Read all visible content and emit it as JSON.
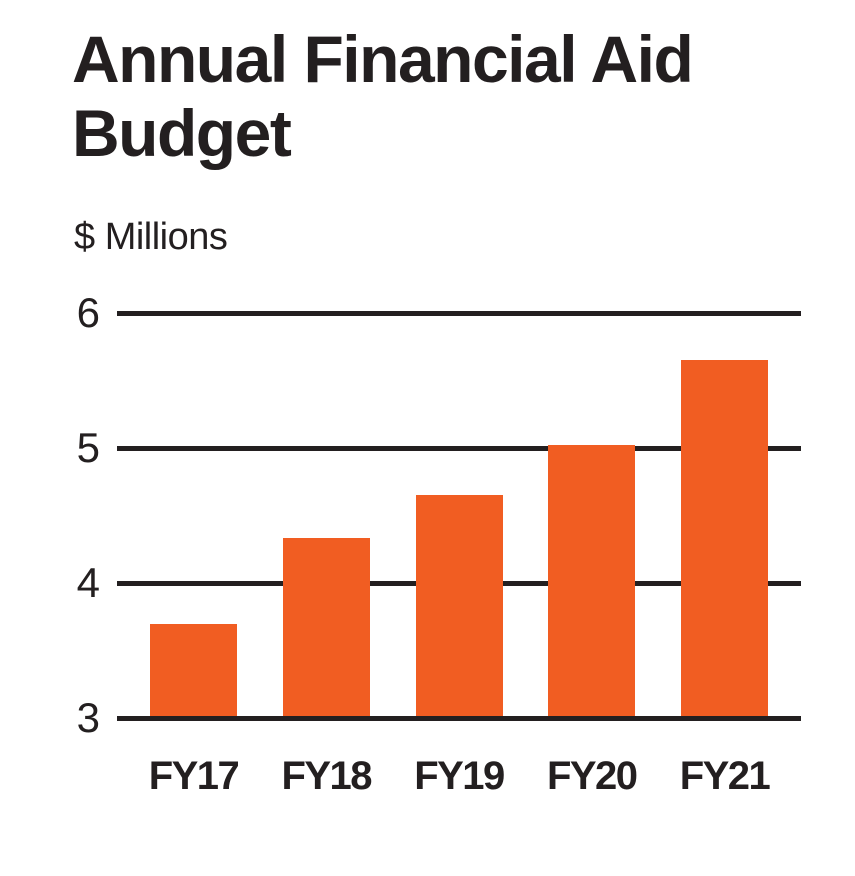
{
  "chart_data": {
    "type": "bar",
    "title": "Annual Financial Aid Budget",
    "title_lines": [
      "Annual Financial Aid",
      "Budget"
    ],
    "unit_label": "$ Millions",
    "ylabel": "$ Millions",
    "categories": [
      "FY17",
      "FY18",
      "FY19",
      "FY20",
      "FY21"
    ],
    "values": [
      3.7,
      4.33,
      4.65,
      5.02,
      5.65
    ],
    "ylim": [
      3,
      6
    ],
    "yticks": [
      3,
      4,
      5,
      6
    ],
    "grid": "horizontal",
    "legend": "none",
    "colors": {
      "bar": "#F15D22",
      "axis": "#231F20",
      "text": "#231F20",
      "background": "#FFFFFF"
    }
  }
}
